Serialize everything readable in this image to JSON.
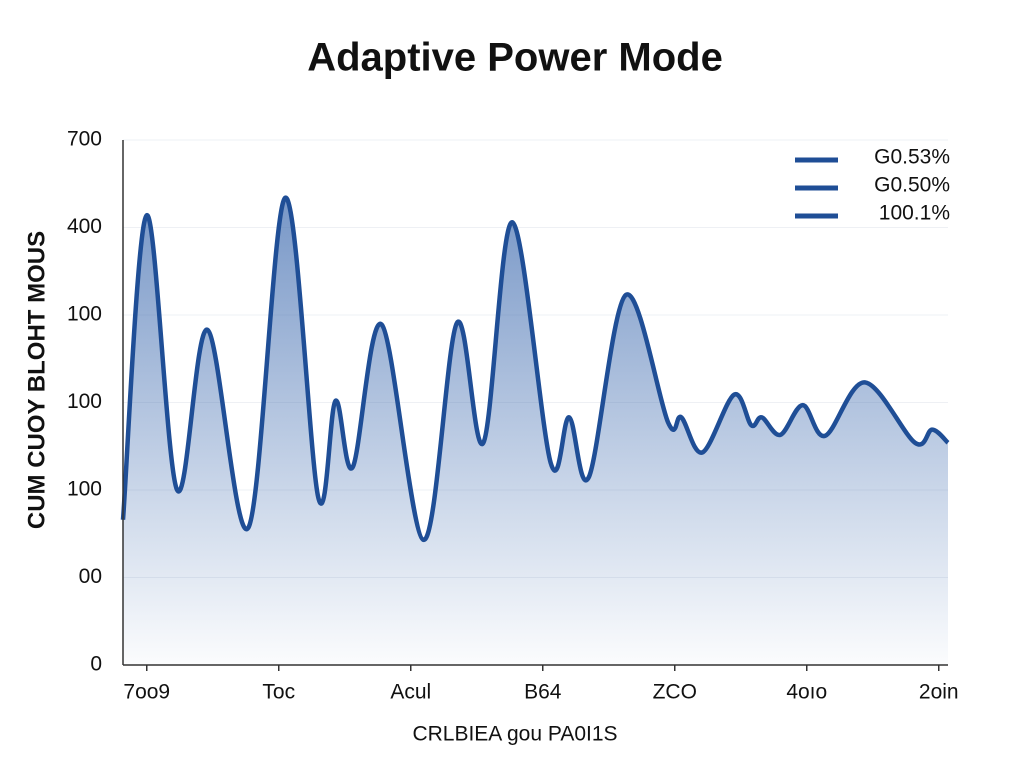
{
  "chart_data": {
    "type": "area",
    "title": "Adaptive Power Mode",
    "x_label": "CRLBIEA gou PA0I1S",
    "y_label": "CUM CUOY BLOHT MOUS",
    "x": [
      -0.18,
      0,
      0.23,
      0.46,
      0.77,
      1.05,
      1.3,
      1.43,
      1.56,
      1.78,
      2.1,
      2.35,
      2.55,
      2.77,
      3.06,
      3.2,
      3.35,
      3.63,
      3.95,
      4.05,
      4.21,
      4.45,
      4.58,
      4.66,
      4.8,
      4.97,
      5.14,
      5.44,
      5.82,
      5.95,
      6.07
    ],
    "series": [
      {
        "color": "#1f4e96",
        "values": [
          166,
          514,
          200,
          383,
          157,
          534,
          191,
          302,
          226,
          389,
          143,
          391,
          254,
          506,
          231,
          283,
          215,
          423,
          277,
          283,
          243,
          309,
          274,
          283,
          263,
          297,
          262,
          323,
          254,
          269,
          254
        ]
      }
    ],
    "legend": [
      {
        "label": "G0.53%",
        "color": "#1f4e96"
      },
      {
        "label": "G0.50%",
        "color": "#1f4e96"
      },
      {
        "label": "100.1%",
        "color": "#1f4e96"
      }
    ],
    "xlim": [
      -0.18,
      6.07
    ],
    "xticks": [
      {
        "value": 0,
        "label": "7oo9"
      },
      {
        "value": 1,
        "label": "Toc"
      },
      {
        "value": 2,
        "label": "Acul"
      },
      {
        "value": 3,
        "label": "B64"
      },
      {
        "value": 4,
        "label": "ZCO"
      },
      {
        "value": 5,
        "label": "4oıo"
      },
      {
        "value": 6,
        "label": "2oin"
      }
    ],
    "ylim": [
      0,
      600
    ],
    "yticks": [
      0,
      {
        "value": 100,
        "label": "00"
      },
      {
        "value": 200,
        "label": "100"
      },
      {
        "value": 300,
        "label": "100"
      },
      {
        "value": 400,
        "label": "100"
      },
      {
        "value": 500,
        "label": "400"
      },
      {
        "value": 600,
        "label": "700"
      }
    ],
    "grid": true
  }
}
